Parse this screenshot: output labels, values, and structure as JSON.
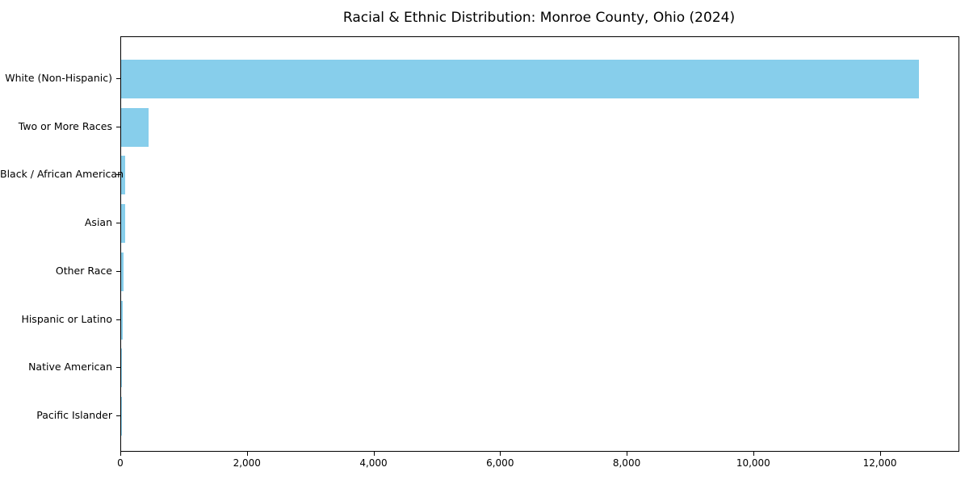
{
  "title": "Racial & Ethnic Distribution: Monroe County, Ohio (2024)",
  "chart_data": {
    "type": "bar",
    "orientation": "horizontal",
    "title": "Racial & Ethnic Distribution: Monroe County, Ohio (2024)",
    "categories": [
      "White (Non-Hispanic)",
      "Two or More Races",
      "Black / African American",
      "Asian",
      "Other Race",
      "Hispanic or Latino",
      "Native American",
      "Pacific Islander"
    ],
    "values": [
      12600,
      440,
      60,
      70,
      40,
      25,
      8,
      3
    ],
    "bar_color": "#87ceeb",
    "axis_color": "#000000",
    "xlabel": "",
    "ylabel": "",
    "xlim": [
      0,
      13230
    ],
    "xticks": [
      0,
      2000,
      4000,
      6000,
      8000,
      10000,
      12000
    ],
    "xtick_labels": [
      "0",
      "2,000",
      "4,000",
      "6,000",
      "8,000",
      "10,000",
      "12,000"
    ],
    "grid": false,
    "legend": null
  }
}
